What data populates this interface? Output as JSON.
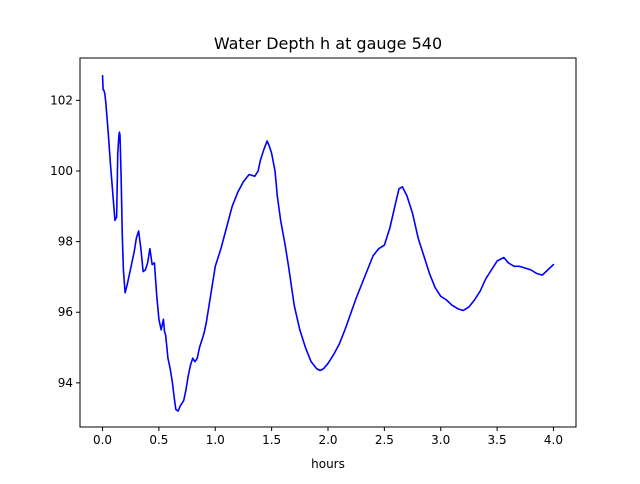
{
  "chart_data": {
    "type": "line",
    "title": "Water Depth h at gauge 540",
    "xlabel": "hours",
    "ylabel": "",
    "xlim": [
      -0.2,
      4.2
    ],
    "ylim": [
      92.75,
      103.2
    ],
    "xticks": [
      0.0,
      0.5,
      1.0,
      1.5,
      2.0,
      2.5,
      3.0,
      3.5,
      4.0
    ],
    "xtick_labels": [
      "0.0",
      "0.5",
      "1.0",
      "1.5",
      "2.0",
      "2.5",
      "3.0",
      "3.5",
      "4.0"
    ],
    "yticks": [
      94,
      96,
      98,
      100,
      102
    ],
    "ytick_labels": [
      "94",
      "96",
      "98",
      "100",
      "102"
    ],
    "grid": false,
    "series": [
      {
        "color": "#0000ff",
        "x": [
          0.0,
          0.005,
          0.01,
          0.02,
          0.03,
          0.05,
          0.07,
          0.09,
          0.11,
          0.125,
          0.135,
          0.145,
          0.15,
          0.155,
          0.165,
          0.175,
          0.185,
          0.2,
          0.22,
          0.24,
          0.26,
          0.28,
          0.3,
          0.32,
          0.34,
          0.36,
          0.38,
          0.4,
          0.42,
          0.44,
          0.46,
          0.48,
          0.5,
          0.52,
          0.54,
          0.55,
          0.56,
          0.58,
          0.6,
          0.62,
          0.635,
          0.65,
          0.67,
          0.69,
          0.72,
          0.74,
          0.76,
          0.78,
          0.8,
          0.82,
          0.84,
          0.86,
          0.88,
          0.9,
          0.92,
          0.94,
          0.96,
          0.98,
          1.0,
          1.05,
          1.1,
          1.15,
          1.2,
          1.25,
          1.3,
          1.35,
          1.38,
          1.4,
          1.43,
          1.46,
          1.48,
          1.5,
          1.53,
          1.55,
          1.58,
          1.62,
          1.65,
          1.7,
          1.75,
          1.8,
          1.85,
          1.9,
          1.93,
          1.96,
          2.0,
          2.05,
          2.1,
          2.15,
          2.2,
          2.25,
          2.3,
          2.35,
          2.4,
          2.45,
          2.5,
          2.55,
          2.6,
          2.63,
          2.66,
          2.7,
          2.75,
          2.8,
          2.85,
          2.9,
          2.95,
          3.0,
          3.05,
          3.1,
          3.15,
          3.2,
          3.25,
          3.3,
          3.35,
          3.4,
          3.45,
          3.5,
          3.53,
          3.56,
          3.6,
          3.65,
          3.7,
          3.75,
          3.8,
          3.85,
          3.9,
          3.95,
          4.0
        ],
        "y": [
          102.7,
          102.3,
          102.3,
          102.2,
          101.9,
          101.1,
          100.2,
          99.4,
          98.6,
          98.7,
          100.5,
          101.0,
          101.1,
          101.0,
          99.8,
          98.2,
          97.2,
          96.55,
          96.8,
          97.1,
          97.4,
          97.7,
          98.1,
          98.3,
          97.8,
          97.15,
          97.2,
          97.4,
          97.8,
          97.35,
          97.4,
          96.5,
          95.8,
          95.5,
          95.8,
          95.45,
          95.35,
          94.7,
          94.4,
          94.0,
          93.6,
          93.25,
          93.2,
          93.35,
          93.5,
          93.8,
          94.2,
          94.5,
          94.7,
          94.6,
          94.7,
          95.0,
          95.2,
          95.4,
          95.7,
          96.1,
          96.5,
          96.9,
          97.3,
          97.8,
          98.4,
          99.0,
          99.4,
          99.7,
          99.9,
          99.85,
          100.0,
          100.3,
          100.6,
          100.85,
          100.7,
          100.5,
          100.0,
          99.3,
          98.6,
          97.9,
          97.3,
          96.2,
          95.5,
          95.0,
          94.6,
          94.4,
          94.35,
          94.4,
          94.55,
          94.8,
          95.1,
          95.5,
          95.95,
          96.4,
          96.8,
          97.2,
          97.6,
          97.8,
          97.9,
          98.4,
          99.1,
          99.5,
          99.55,
          99.3,
          98.8,
          98.1,
          97.6,
          97.1,
          96.7,
          96.45,
          96.35,
          96.2,
          96.1,
          96.05,
          96.15,
          96.35,
          96.6,
          96.95,
          97.2,
          97.45,
          97.5,
          97.55,
          97.4,
          97.3,
          97.3,
          97.25,
          97.2,
          97.1,
          97.05,
          97.2,
          97.35
        ]
      }
    ]
  }
}
